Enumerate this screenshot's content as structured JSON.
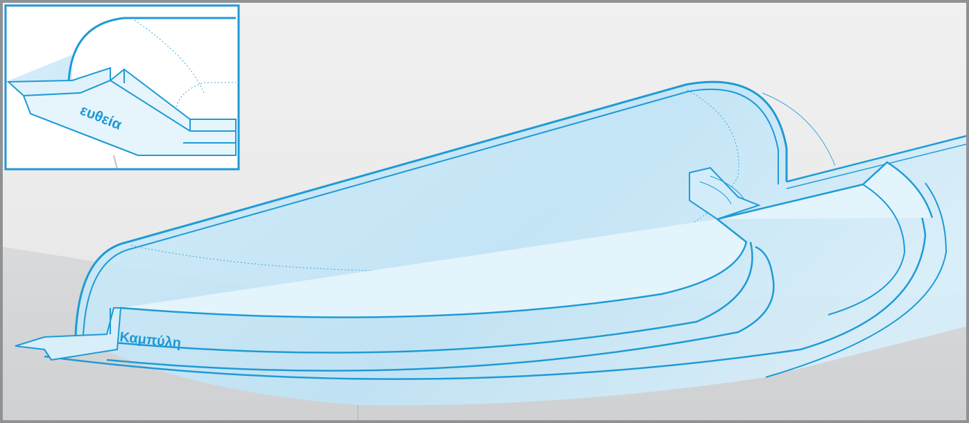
{
  "diagram": {
    "main_view": {
      "label": "Καμπύλη",
      "subject": "curved-staircase-pool-corner"
    },
    "inset_view": {
      "label": "ευθεία",
      "subject": "straight-staircase-pool-corner"
    },
    "colors": {
      "water": "#bfe4f7",
      "water_light": "#dcf1fb",
      "outline": "#1e9ad6",
      "floor": "#d4d5d7",
      "background": "#ececec",
      "frame": "#8f9194"
    }
  }
}
